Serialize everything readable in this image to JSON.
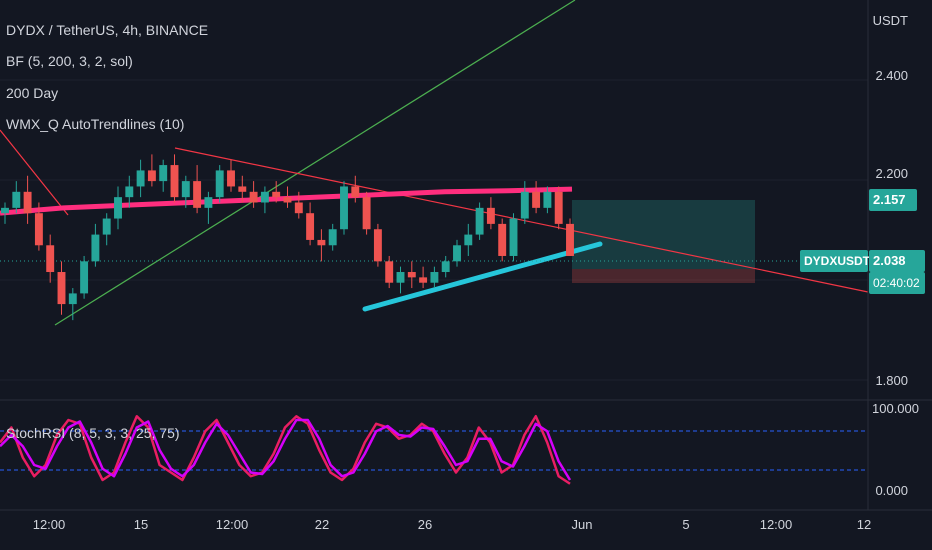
{
  "header": {
    "symbol": "DYDX / TetherUS, 4h, BINANCE",
    "indicators": [
      "BF (5, 200, 3, 2, sol)",
      "200 Day",
      "WMX_Q AutoTrendlines (10)"
    ],
    "oscillator": "StochRSI (8, 5, 3, 3, 25, 75)"
  },
  "price_axis": {
    "currency": "USDT",
    "ticks": [
      "2.400",
      "2.200",
      "1.800"
    ],
    "upper_tag": "2.157",
    "current_symbol": "DYDXUSDT",
    "current_price": "2.038",
    "countdown": "02:40:02"
  },
  "osc_axis": {
    "ticks": [
      "100.000",
      "0.000"
    ]
  },
  "time_axis": {
    "ticks": [
      "12:00",
      "15",
      "12:00",
      "22",
      "26",
      "Jun",
      "5",
      "12:00",
      "12"
    ]
  },
  "colors": {
    "up": "#26a69a",
    "down": "#ef5350",
    "ma": "#ff2e7e",
    "trend_green": "#4caf50",
    "trend_red": "#f23645",
    "cyan": "#26c6da",
    "stoch_k": "#e91e63",
    "stoch_d": "#d500f9"
  },
  "chart_data": {
    "type": "candlestick",
    "price_range": [
      1.78,
      2.5
    ],
    "candles": [
      [
        2.12,
        2.14,
        2.1,
        2.13
      ],
      [
        2.13,
        2.18,
        2.12,
        2.16
      ],
      [
        2.16,
        2.19,
        2.1,
        2.12
      ],
      [
        2.12,
        2.14,
        2.05,
        2.06
      ],
      [
        2.06,
        2.08,
        1.99,
        2.01
      ],
      [
        2.01,
        2.03,
        1.93,
        1.95
      ],
      [
        1.95,
        1.98,
        1.92,
        1.97
      ],
      [
        1.97,
        2.04,
        1.96,
        2.03
      ],
      [
        2.03,
        2.1,
        2.02,
        2.08
      ],
      [
        2.08,
        2.12,
        2.06,
        2.11
      ],
      [
        2.11,
        2.17,
        2.09,
        2.15
      ],
      [
        2.15,
        2.19,
        2.13,
        2.17
      ],
      [
        2.17,
        2.22,
        2.15,
        2.2
      ],
      [
        2.2,
        2.23,
        2.17,
        2.18
      ],
      [
        2.18,
        2.22,
        2.16,
        2.21
      ],
      [
        2.21,
        2.23,
        2.14,
        2.15
      ],
      [
        2.15,
        2.19,
        2.13,
        2.18
      ],
      [
        2.18,
        2.21,
        2.12,
        2.13
      ],
      [
        2.13,
        2.16,
        2.1,
        2.15
      ],
      [
        2.15,
        2.21,
        2.14,
        2.2
      ],
      [
        2.2,
        2.22,
        2.16,
        2.17
      ],
      [
        2.17,
        2.19,
        2.14,
        2.16
      ],
      [
        2.16,
        2.18,
        2.13,
        2.14
      ],
      [
        2.14,
        2.17,
        2.12,
        2.16
      ],
      [
        2.16,
        2.18,
        2.14,
        2.15
      ],
      [
        2.15,
        2.17,
        2.13,
        2.14
      ],
      [
        2.14,
        2.16,
        2.11,
        2.12
      ],
      [
        2.12,
        2.14,
        2.06,
        2.07
      ],
      [
        2.07,
        2.09,
        2.03,
        2.06
      ],
      [
        2.06,
        2.1,
        2.05,
        2.09
      ],
      [
        2.09,
        2.18,
        2.08,
        2.17
      ],
      [
        2.17,
        2.19,
        2.14,
        2.15
      ],
      [
        2.15,
        2.16,
        2.08,
        2.09
      ],
      [
        2.09,
        2.1,
        2.02,
        2.03
      ],
      [
        2.03,
        2.04,
        1.98,
        1.99
      ],
      [
        1.99,
        2.02,
        1.97,
        2.01
      ],
      [
        2.01,
        2.03,
        1.98,
        2.0
      ],
      [
        2.0,
        2.02,
        1.98,
        1.99
      ],
      [
        1.99,
        2.02,
        1.98,
        2.01
      ],
      [
        2.01,
        2.04,
        2.0,
        2.03
      ],
      [
        2.03,
        2.07,
        2.02,
        2.06
      ],
      [
        2.06,
        2.1,
        2.04,
        2.08
      ],
      [
        2.08,
        2.14,
        2.07,
        2.13
      ],
      [
        2.13,
        2.15,
        2.09,
        2.1
      ],
      [
        2.1,
        2.11,
        2.03,
        2.04
      ],
      [
        2.04,
        2.12,
        2.03,
        2.11
      ],
      [
        2.11,
        2.18,
        2.1,
        2.16
      ],
      [
        2.16,
        2.18,
        2.12,
        2.13
      ],
      [
        2.13,
        2.17,
        2.12,
        2.16
      ],
      [
        2.16,
        2.17,
        2.09,
        2.1
      ],
      [
        2.1,
        2.11,
        2.04,
        2.04
      ]
    ],
    "ma200": [
      2.12,
      2.13,
      2.135,
      2.14,
      2.145,
      2.15,
      2.155,
      2.16,
      2.162,
      2.165
    ],
    "stoch_k": [
      60,
      80,
      40,
      15,
      30,
      70,
      90,
      85,
      40,
      10,
      20,
      60,
      95,
      80,
      30,
      20,
      10,
      40,
      75,
      90,
      60,
      30,
      15,
      20,
      45,
      80,
      95,
      85,
      50,
      20,
      10,
      25,
      60,
      85,
      80,
      65,
      70,
      85,
      75,
      45,
      20,
      40,
      80,
      60,
      20,
      30,
      70,
      95,
      60,
      15,
      5
    ],
    "stoch_d": [
      55,
      70,
      55,
      30,
      25,
      55,
      80,
      88,
      60,
      25,
      15,
      45,
      80,
      88,
      50,
      25,
      15,
      30,
      60,
      85,
      70,
      45,
      20,
      18,
      35,
      65,
      90,
      90,
      65,
      30,
      15,
      20,
      45,
      75,
      82,
      70,
      68,
      80,
      78,
      55,
      30,
      35,
      65,
      65,
      35,
      28,
      55,
      85,
      75,
      35,
      10
    ],
    "osc_range": [
      -10,
      110
    ]
  }
}
